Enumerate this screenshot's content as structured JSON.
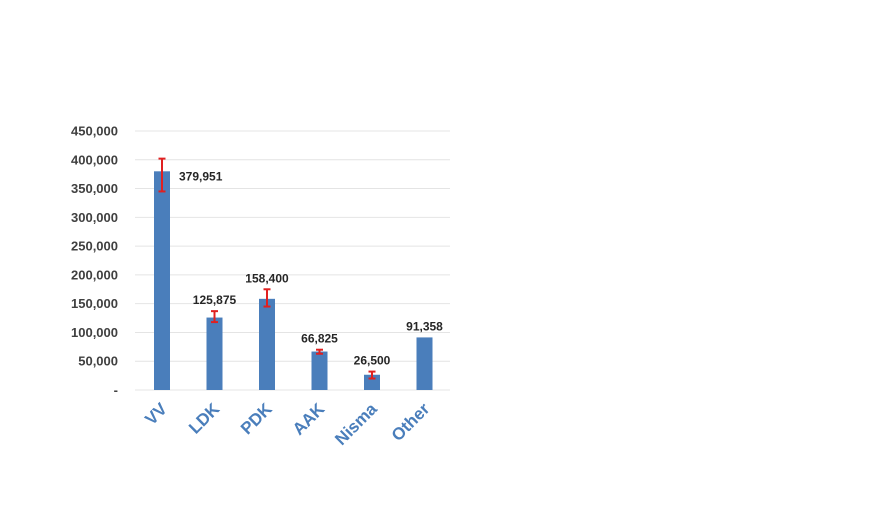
{
  "chart_data": {
    "type": "bar",
    "title": "",
    "xlabel": "",
    "ylabel": "",
    "categories": [
      "VV",
      "LDK",
      "PDK",
      "AAK",
      "Nisma",
      "Other"
    ],
    "values": [
      379951,
      125875,
      158400,
      66825,
      26500,
      91358
    ],
    "data_labels": [
      "379,951",
      "125,875",
      "158,400",
      "66,825",
      "26,500",
      "91,358"
    ],
    "error_bars": [
      {
        "low": 345000,
        "high": 402000
      },
      {
        "low": 118000,
        "high": 137000
      },
      {
        "low": 145000,
        "high": 175000
      },
      {
        "low": 63000,
        "high": 70000
      },
      {
        "low": 20000,
        "high": 32000
      },
      null
    ],
    "ylim": [
      0,
      450000
    ],
    "yticks": [
      0,
      50000,
      100000,
      150000,
      200000,
      250000,
      300000,
      350000,
      400000,
      450000
    ],
    "ytick_labels": [
      "-",
      "50,000",
      "100,000",
      "150,000",
      "200,000",
      "250,000",
      "300,000",
      "350,000",
      "400,000",
      "450,000"
    ],
    "grid": true,
    "legend": "none",
    "colors": {
      "bar": "#4a7ebb",
      "error_bar": "#e02020",
      "x_tick_label": "#4a7ebb",
      "y_tick_label": "#404040"
    }
  }
}
